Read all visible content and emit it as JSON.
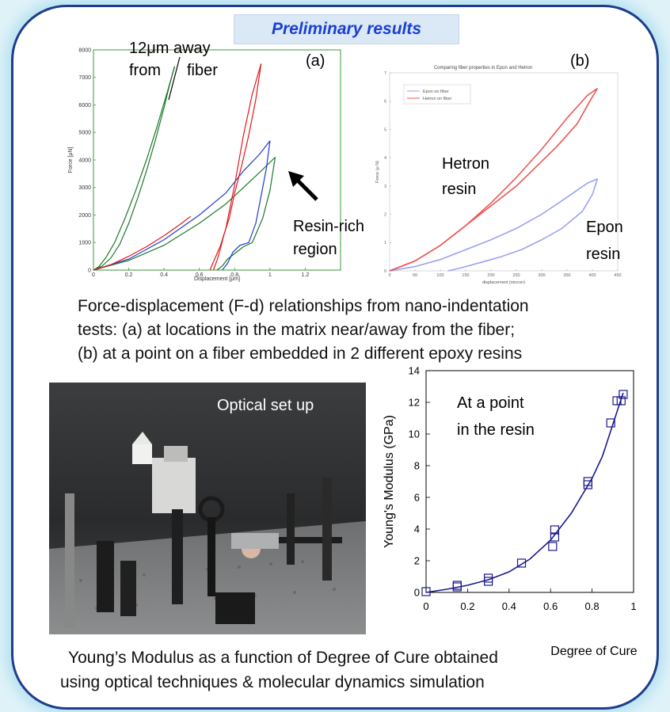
{
  "banner": "Preliminary results",
  "chart_a": {
    "type": "line",
    "panel_label": "(a)",
    "xlabel": "Displacement [μm]",
    "ylabel": "Force [μN]",
    "xlim": [
      0,
      1.4
    ],
    "ylim": [
      0,
      8000
    ],
    "xticks": [
      "0",
      "0.2",
      "0.4",
      "0.6",
      "0.8",
      "1",
      "1.2"
    ],
    "yticks": [
      "0",
      "1000",
      "2000",
      "3000",
      "4000",
      "5000",
      "6000",
      "7000",
      "8000"
    ],
    "annot_away_line1": "12μm away",
    "annot_away_line2": "from",
    "annot_away_line3": "fiber",
    "annot_resin_line1": "Resin-rich",
    "annot_resin_line2": "region",
    "series": [
      {
        "color": "#1a7a2a",
        "load_x": [
          0,
          0.05,
          0.1,
          0.15,
          0.2,
          0.25,
          0.3,
          0.35,
          0.4,
          0.43,
          0.46
        ],
        "load_y": [
          0,
          150,
          450,
          950,
          1700,
          2600,
          3600,
          4700,
          5900,
          6700,
          7400
        ],
        "unload_x": [
          0.46,
          0.42,
          0.36,
          0.3,
          0.24,
          0.18,
          0.12,
          0.07,
          0.03,
          0
        ],
        "unload_y": [
          7400,
          6500,
          5200,
          4000,
          2900,
          1900,
          1000,
          450,
          120,
          0
        ]
      },
      {
        "color": "#1a7a2a",
        "load_x": [
          0,
          0.2,
          0.4,
          0.6,
          0.75,
          0.85,
          0.95,
          1.03
        ],
        "load_y": [
          0,
          350,
          900,
          1700,
          2400,
          3000,
          3600,
          4100
        ],
        "unload_x": [
          1.03,
          1.0,
          0.96,
          0.9,
          0.85,
          0.8,
          0.76,
          0.73,
          0.7
        ],
        "unload_y": [
          4100,
          2900,
          1900,
          1000,
          850,
          600,
          400,
          150,
          0
        ]
      },
      {
        "color": "#1f3bd0",
        "load_x": [
          0,
          0.2,
          0.4,
          0.6,
          0.75,
          0.85,
          0.94,
          1.0
        ],
        "load_y": [
          0,
          400,
          1100,
          2000,
          2800,
          3600,
          4200,
          4700
        ],
        "unload_x": [
          1.0,
          0.98,
          0.95,
          0.92,
          0.88,
          0.83,
          0.79,
          0.76,
          0.73
        ],
        "unload_y": [
          4700,
          3700,
          2700,
          1700,
          1000,
          900,
          650,
          250,
          0
        ]
      },
      {
        "color": "#e01818",
        "load_x": [
          0,
          0.1,
          0.2,
          0.3,
          0.4,
          0.5,
          0.55
        ],
        "load_y": [
          0,
          200,
          500,
          850,
          1250,
          1700,
          1950
        ],
        "reload_x": [
          0.66,
          0.72,
          0.75,
          0.8,
          0.85,
          0.9,
          0.95
        ],
        "reload_y": [
          0,
          900,
          1500,
          3100,
          4900,
          6400,
          7500
        ],
        "unload_x": [
          0.95,
          0.92,
          0.88,
          0.84,
          0.8,
          0.77,
          0.74,
          0.72,
          0.7,
          0.68
        ],
        "unload_y": [
          7500,
          6200,
          4900,
          3800,
          2800,
          1900,
          1300,
          800,
          350,
          0
        ]
      }
    ]
  },
  "chart_b": {
    "type": "line",
    "panel_label": "(b)",
    "title": "Comparing fiber properties in Epon and Hetron",
    "xlabel": "displacement (micron)",
    "ylabel": "Force (μ N)",
    "xlim": [
      0,
      450
    ],
    "ylim": [
      0,
      7
    ],
    "xticks": [
      "0",
      "50",
      "100",
      "150",
      "200",
      "250",
      "300",
      "350",
      "400",
      "450"
    ],
    "yticks": [
      "0",
      "1",
      "2",
      "3",
      "4",
      "5",
      "6",
      "7"
    ],
    "legend": [
      "Epon on fiber",
      "Hetron on fiber"
    ],
    "annot_hetron_line1": "Hetron",
    "annot_hetron_line2": "resin",
    "annot_epon_line1": "Epon",
    "annot_epon_line2": "resin",
    "series": [
      {
        "name": "Epon on fiber",
        "color": "#9aa2f0",
        "load_x": [
          0,
          50,
          100,
          150,
          200,
          250,
          300,
          350,
          390,
          410
        ],
        "load_y": [
          0,
          0.15,
          0.4,
          0.75,
          1.1,
          1.5,
          2.0,
          2.6,
          3.1,
          3.25
        ],
        "unload_x": [
          410,
          400,
          380,
          340,
          300,
          260,
          220,
          180,
          140,
          115
        ],
        "unload_y": [
          3.25,
          2.7,
          2.1,
          1.5,
          1.1,
          0.75,
          0.5,
          0.3,
          0.1,
          0
        ]
      },
      {
        "name": "Hetron on fiber",
        "color": "#ee5555",
        "load_x": [
          0,
          50,
          100,
          150,
          200,
          250,
          300,
          350,
          390,
          410
        ],
        "load_y": [
          0,
          0.35,
          0.9,
          1.6,
          2.4,
          3.3,
          4.3,
          5.4,
          6.2,
          6.45
        ],
        "unload_x": [
          410,
          395,
          370,
          330,
          290,
          250,
          200,
          150,
          100,
          50,
          0
        ],
        "unload_y": [
          6.45,
          6.0,
          5.2,
          4.4,
          3.7,
          3.0,
          2.3,
          1.6,
          0.9,
          0.35,
          0
        ]
      }
    ]
  },
  "caption_top": {
    "line1": "Force-displacement (F-d) relationships from nano-indentation",
    "line2": "tests: (a) at locations in the matrix near/away from the fiber;",
    "line3": "(b) at a point on a fiber embedded in 2 different epoxy resins"
  },
  "photo": {
    "label": "Optical set up"
  },
  "chart_c": {
    "type": "scatter",
    "xlabel": "Degree of Cure",
    "ylabel": "Young's Modulus (GPa)",
    "xlim": [
      0,
      1
    ],
    "ylim": [
      0,
      14
    ],
    "xticks": [
      "0",
      "0.2",
      "0.4",
      "0.6",
      "0.8",
      "1"
    ],
    "yticks": [
      "0",
      "2",
      "4",
      "6",
      "8",
      "10",
      "12",
      "14"
    ],
    "annot_line1": "At a point",
    "annot_line2": "in the resin",
    "points_x": [
      0,
      0.15,
      0.15,
      0.3,
      0.3,
      0.46,
      0.61,
      0.62,
      0.62,
      0.78,
      0.78,
      0.89,
      0.92,
      0.94,
      0.95
    ],
    "points_y": [
      0.05,
      0.35,
      0.45,
      0.7,
      0.9,
      1.85,
      2.9,
      3.5,
      3.95,
      6.8,
      7.0,
      10.7,
      12.1,
      12.1,
      12.5
    ],
    "curve_x": [
      0,
      0.1,
      0.2,
      0.3,
      0.4,
      0.5,
      0.6,
      0.7,
      0.8,
      0.85,
      0.9,
      0.95
    ],
    "curve_y": [
      0,
      0.2,
      0.45,
      0.8,
      1.3,
      2.1,
      3.3,
      5.0,
      7.2,
      8.6,
      10.6,
      12.6
    ]
  },
  "caption_bottom": {
    "line1": "Young’s Modulus as a function of Degree of Cure obtained",
    "line2": "using optical techniques & molecular dynamics simulation"
  }
}
